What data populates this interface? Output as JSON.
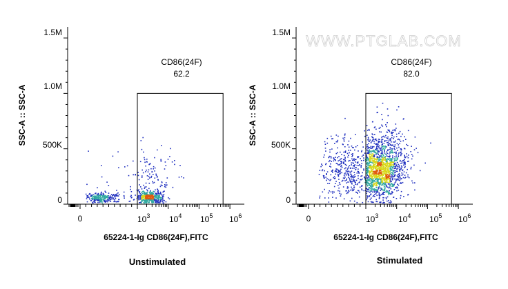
{
  "watermark": "WWW.PTGLAB.COM",
  "colors": {
    "density_low": "#1f2fbf",
    "density_mid": "#2fa8a0",
    "density_high": "#d8d81a",
    "density_peak": "#e05a10",
    "gate_line": "#000000"
  },
  "chart_data": [
    {
      "type": "scatter",
      "subtype": "flow-cytometry-density-dot-plot",
      "caption": "Unstimulated",
      "xlabel": "65224-1-Ig CD86(24F),FITC",
      "ylabel": "SSC-A :: SSC-A",
      "x_scale": "biexponential",
      "x_ticks": [
        {
          "base": "0",
          "exp": ""
        },
        {
          "base": "10",
          "exp": "3"
        },
        {
          "base": "10",
          "exp": "4"
        },
        {
          "base": "10",
          "exp": "5"
        },
        {
          "base": "10",
          "exp": "6"
        }
      ],
      "y_ticks": [
        "0",
        "500K",
        "1.0M",
        "1.5M"
      ],
      "ylim": [
        0,
        1600000
      ],
      "gate": {
        "name": "CD86(24F)",
        "percent": "62.2",
        "x_range": [
          1000,
          600000
        ],
        "y_range": [
          0,
          1000000
        ]
      },
      "populations": [
        {
          "x_center": 350,
          "y_center": 60000,
          "x_spread_decades": 0.18,
          "y_spread": 25000,
          "n": 260
        },
        {
          "x_center": 2500,
          "y_center": 70000,
          "x_spread_decades": 0.2,
          "y_spread": 30000,
          "n": 420
        },
        {
          "x_center": 3000,
          "y_center": 250000,
          "x_spread_decades": 0.45,
          "y_spread": 150000,
          "n": 140
        }
      ]
    },
    {
      "type": "scatter",
      "subtype": "flow-cytometry-density-dot-plot",
      "caption": "Stimulated",
      "xlabel": "65224-1-Ig CD86(24F),FITC",
      "ylabel": "SSC-A :: SSC-A",
      "x_scale": "biexponential",
      "x_ticks": [
        {
          "base": "0",
          "exp": ""
        },
        {
          "base": "10",
          "exp": "3"
        },
        {
          "base": "10",
          "exp": "4"
        },
        {
          "base": "10",
          "exp": "5"
        },
        {
          "base": "10",
          "exp": "6"
        }
      ],
      "y_ticks": [
        "0",
        "500K",
        "1.0M",
        "1.5M"
      ],
      "ylim": [
        0,
        1600000
      ],
      "gate": {
        "name": "CD86(24F)",
        "percent": "82.0",
        "x_range": [
          1000,
          600000
        ],
        "y_range": [
          0,
          1000000
        ]
      },
      "populations": [
        {
          "x_center": 2800,
          "y_center": 300000,
          "x_spread_decades": 0.35,
          "y_spread": 120000,
          "n": 1300
        },
        {
          "x_center": 800,
          "y_center": 320000,
          "x_spread_decades": 0.25,
          "y_spread": 140000,
          "n": 380
        },
        {
          "x_center": 5000,
          "y_center": 480000,
          "x_spread_decades": 0.4,
          "y_spread": 170000,
          "n": 300
        }
      ]
    }
  ]
}
